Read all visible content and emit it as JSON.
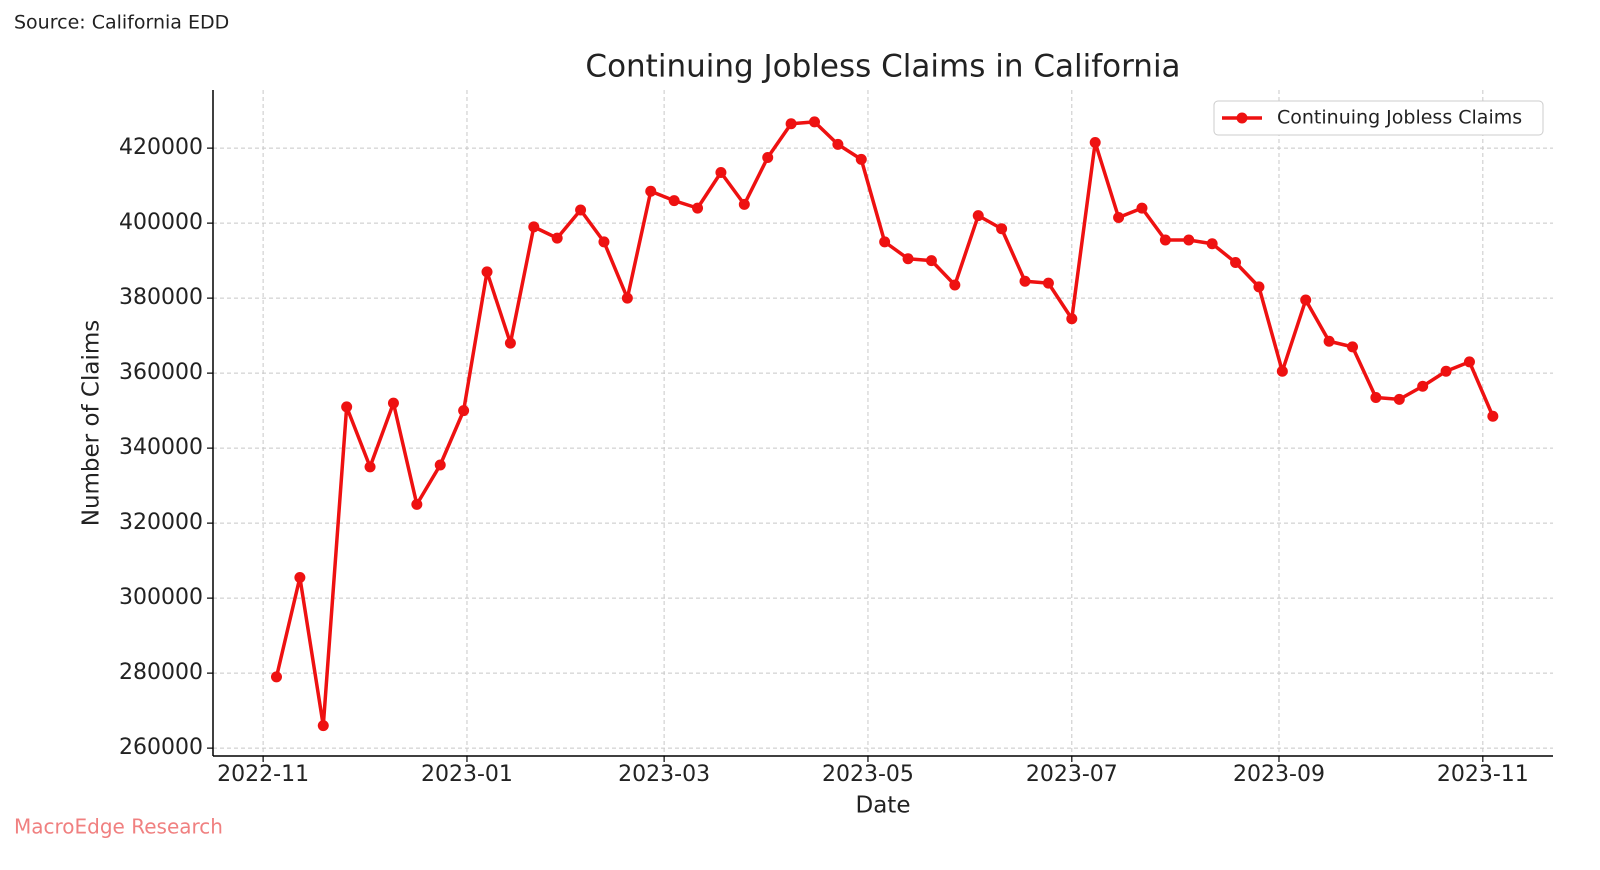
{
  "source": "Source: California EDD",
  "watermark": "MacroEdge Research",
  "chart_data": {
    "type": "line",
    "title": "Continuing Jobless Claims in California",
    "x_label": "Date",
    "y_label": "Number of Claims",
    "x": [
      "2022-11-05",
      "2022-11-12",
      "2022-11-19",
      "2022-11-26",
      "2022-12-03",
      "2022-12-10",
      "2022-12-17",
      "2022-12-24",
      "2022-12-31",
      "2023-01-07",
      "2023-01-14",
      "2023-01-21",
      "2023-01-28",
      "2023-02-04",
      "2023-02-11",
      "2023-02-18",
      "2023-02-25",
      "2023-03-04",
      "2023-03-11",
      "2023-03-18",
      "2023-03-25",
      "2023-04-01",
      "2023-04-08",
      "2023-04-15",
      "2023-04-22",
      "2023-04-29",
      "2023-05-06",
      "2023-05-13",
      "2023-05-20",
      "2023-05-27",
      "2023-06-03",
      "2023-06-10",
      "2023-06-17",
      "2023-06-24",
      "2023-07-01",
      "2023-07-08",
      "2023-07-15",
      "2023-07-22",
      "2023-07-29",
      "2023-08-05",
      "2023-08-12",
      "2023-08-19",
      "2023-08-26",
      "2023-09-02",
      "2023-09-09",
      "2023-09-16",
      "2023-09-23",
      "2023-09-30",
      "2023-10-07",
      "2023-10-14",
      "2023-10-21",
      "2023-10-28",
      "2023-11-04"
    ],
    "series": [
      {
        "name": "Continuing Jobless Claims",
        "color": "#ee1111",
        "values": [
          279000,
          305500,
          266000,
          351000,
          335000,
          352000,
          325000,
          335500,
          350000,
          387000,
          368000,
          399000,
          396000,
          403500,
          395000,
          380000,
          408500,
          406000,
          404000,
          413500,
          405000,
          417500,
          426500,
          427000,
          421000,
          417000,
          395000,
          390500,
          390000,
          383500,
          402000,
          398500,
          384500,
          384000,
          374500,
          421500,
          401500,
          404000,
          395500,
          395500,
          394500,
          389500,
          383000,
          360500,
          379500,
          368500,
          367000,
          353500,
          353000,
          356500,
          360500,
          363000,
          348500
        ]
      }
    ],
    "xlim": [
      "2022-10-17",
      "2023-11-22"
    ],
    "xticks": [
      {
        "value": "2022-11-01",
        "label": "2022-11"
      },
      {
        "value": "2023-01-01",
        "label": "2023-01"
      },
      {
        "value": "2023-03-01",
        "label": "2023-03"
      },
      {
        "value": "2023-05-01",
        "label": "2023-05"
      },
      {
        "value": "2023-07-01",
        "label": "2023-07"
      },
      {
        "value": "2023-09-01",
        "label": "2023-09"
      },
      {
        "value": "2023-11-01",
        "label": "2023-11"
      }
    ],
    "ylim": [
      257900,
      435500
    ],
    "yticks": [
      260000,
      280000,
      300000,
      320000,
      340000,
      360000,
      380000,
      400000,
      420000
    ],
    "grid": true,
    "legend": "upper right"
  }
}
